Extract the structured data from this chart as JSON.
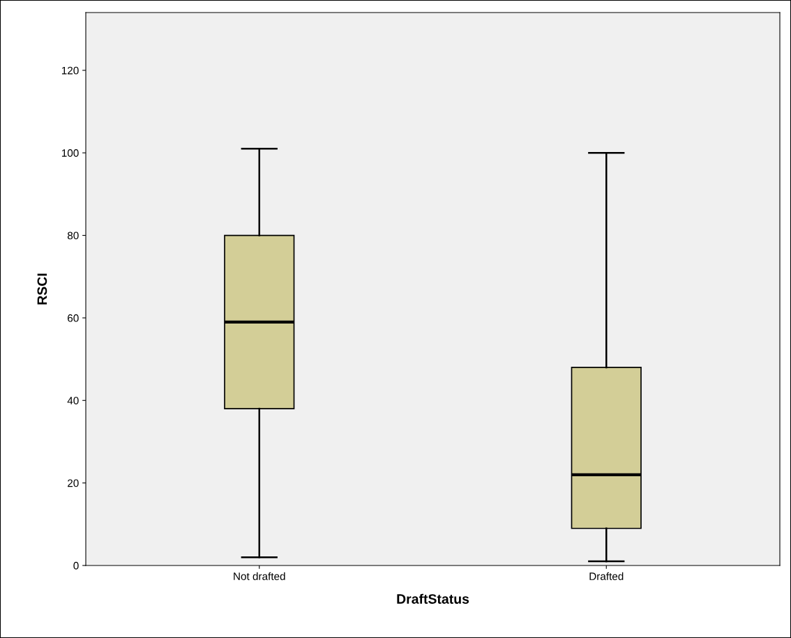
{
  "chart_data": {
    "type": "box",
    "xlabel": "DraftStatus",
    "ylabel": "RSCI",
    "categories": [
      "Not drafted",
      "Drafted"
    ],
    "series": [
      {
        "color": "#d3ce97",
        "boxes": [
          {
            "low": 2,
            "q1": 38,
            "median": 59,
            "q3": 80,
            "high": 101
          },
          {
            "low": 1,
            "q1": 9,
            "median": 22,
            "q3": 48,
            "high": 100
          }
        ]
      }
    ],
    "ylim": [
      0,
      134
    ],
    "yticks": [
      0,
      20,
      40,
      60,
      80,
      100,
      120
    ],
    "grid": false
  }
}
